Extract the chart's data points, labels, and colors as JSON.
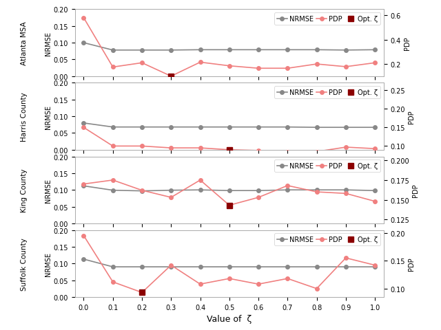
{
  "zeta_values": [
    0.0,
    0.1,
    0.2,
    0.3,
    0.4,
    0.5,
    0.6,
    0.7,
    0.8,
    0.9,
    1.0
  ],
  "subplots": [
    {
      "region": "Atlanta MSA",
      "nrmse": [
        0.1,
        0.078,
        0.078,
        0.078,
        0.079,
        0.079,
        0.079,
        0.079,
        0.079,
        0.078,
        0.079
      ],
      "pdp": [
        0.58,
        0.175,
        0.21,
        0.1,
        0.215,
        0.185,
        0.165,
        0.165,
        0.2,
        0.178,
        0.21
      ],
      "opt_zeta": 0.3,
      "opt_pdp": 0.1,
      "ylim_left": [
        0.0,
        0.2
      ],
      "ylim_right": [
        0.1,
        0.65
      ],
      "yticks_left": [
        0.0,
        0.05,
        0.1,
        0.15,
        0.2
      ],
      "yticks_right": [
        0.2,
        0.4,
        0.6
      ],
      "ylabel_right": "PDP"
    },
    {
      "region": "Harris County",
      "nrmse": [
        0.08,
        0.068,
        0.068,
        0.068,
        0.068,
        0.068,
        0.068,
        0.068,
        0.067,
        0.067,
        0.067
      ],
      "pdp": [
        0.15,
        0.1,
        0.1,
        0.095,
        0.095,
        0.09,
        0.088,
        0.085,
        0.085,
        0.097,
        0.093
      ],
      "opt_zeta": 0.5,
      "opt_pdp": 0.09,
      "ylim_left": [
        0.0,
        0.2
      ],
      "ylim_right": [
        0.09,
        0.27
      ],
      "yticks_left": [
        0.0,
        0.05,
        0.1,
        0.15,
        0.2
      ],
      "yticks_right": [
        0.1,
        0.15,
        0.2,
        0.25
      ],
      "ylabel_right": "PDP"
    },
    {
      "region": "King County",
      "nrmse": [
        0.112,
        0.099,
        0.097,
        0.099,
        0.1,
        0.098,
        0.098,
        0.1,
        0.1,
        0.1,
        0.098
      ],
      "pdp": [
        0.17,
        0.175,
        0.162,
        0.153,
        0.175,
        0.143,
        0.153,
        0.168,
        0.16,
        0.158,
        0.148
      ],
      "opt_zeta": 0.5,
      "opt_pdp": 0.143,
      "ylim_left": [
        0.0,
        0.2
      ],
      "ylim_right": [
        0.12,
        0.205
      ],
      "yticks_left": [
        0.0,
        0.05,
        0.1,
        0.15,
        0.2
      ],
      "yticks_right": [
        0.125,
        0.15,
        0.175,
        0.2
      ],
      "ylabel_right": "PDP"
    },
    {
      "region": "Suffolk County",
      "nrmse": [
        0.113,
        0.09,
        0.09,
        0.09,
        0.09,
        0.09,
        0.09,
        0.09,
        0.09,
        0.09,
        0.09
      ],
      "pdp": [
        0.195,
        0.112,
        0.093,
        0.142,
        0.108,
        0.118,
        0.108,
        0.118,
        0.1,
        0.155,
        0.142
      ],
      "opt_zeta": 0.2,
      "opt_pdp": 0.093,
      "ylim_left": [
        0.0,
        0.2
      ],
      "ylim_right": [
        0.085,
        0.205
      ],
      "yticks_left": [
        0.0,
        0.05,
        0.1,
        0.15,
        0.2
      ],
      "yticks_right": [
        0.1,
        0.15,
        0.2
      ],
      "ylabel_right": "PDP"
    }
  ],
  "nrmse_color": "#888888",
  "pdp_color": "#f08080",
  "opt_color": "#8b0000",
  "marker_size": 4,
  "opt_marker_size": 6,
  "linewidth": 1.2,
  "xlabel": "Value of  ζ",
  "ylabel_left": "NRMSE",
  "legend_labels": [
    "NRMSE",
    "PDP",
    "Opt. ζ"
  ],
  "xticks": [
    0.0,
    0.1,
    0.2,
    0.3,
    0.4,
    0.5,
    0.6,
    0.7,
    0.8,
    0.9,
    1.0
  ],
  "xtick_labels": [
    "0.0",
    "0.1",
    "0.2",
    "0.3",
    "0.4",
    "0.5",
    "0.6",
    "0.7",
    "0.8",
    "0.9",
    "1.0"
  ]
}
